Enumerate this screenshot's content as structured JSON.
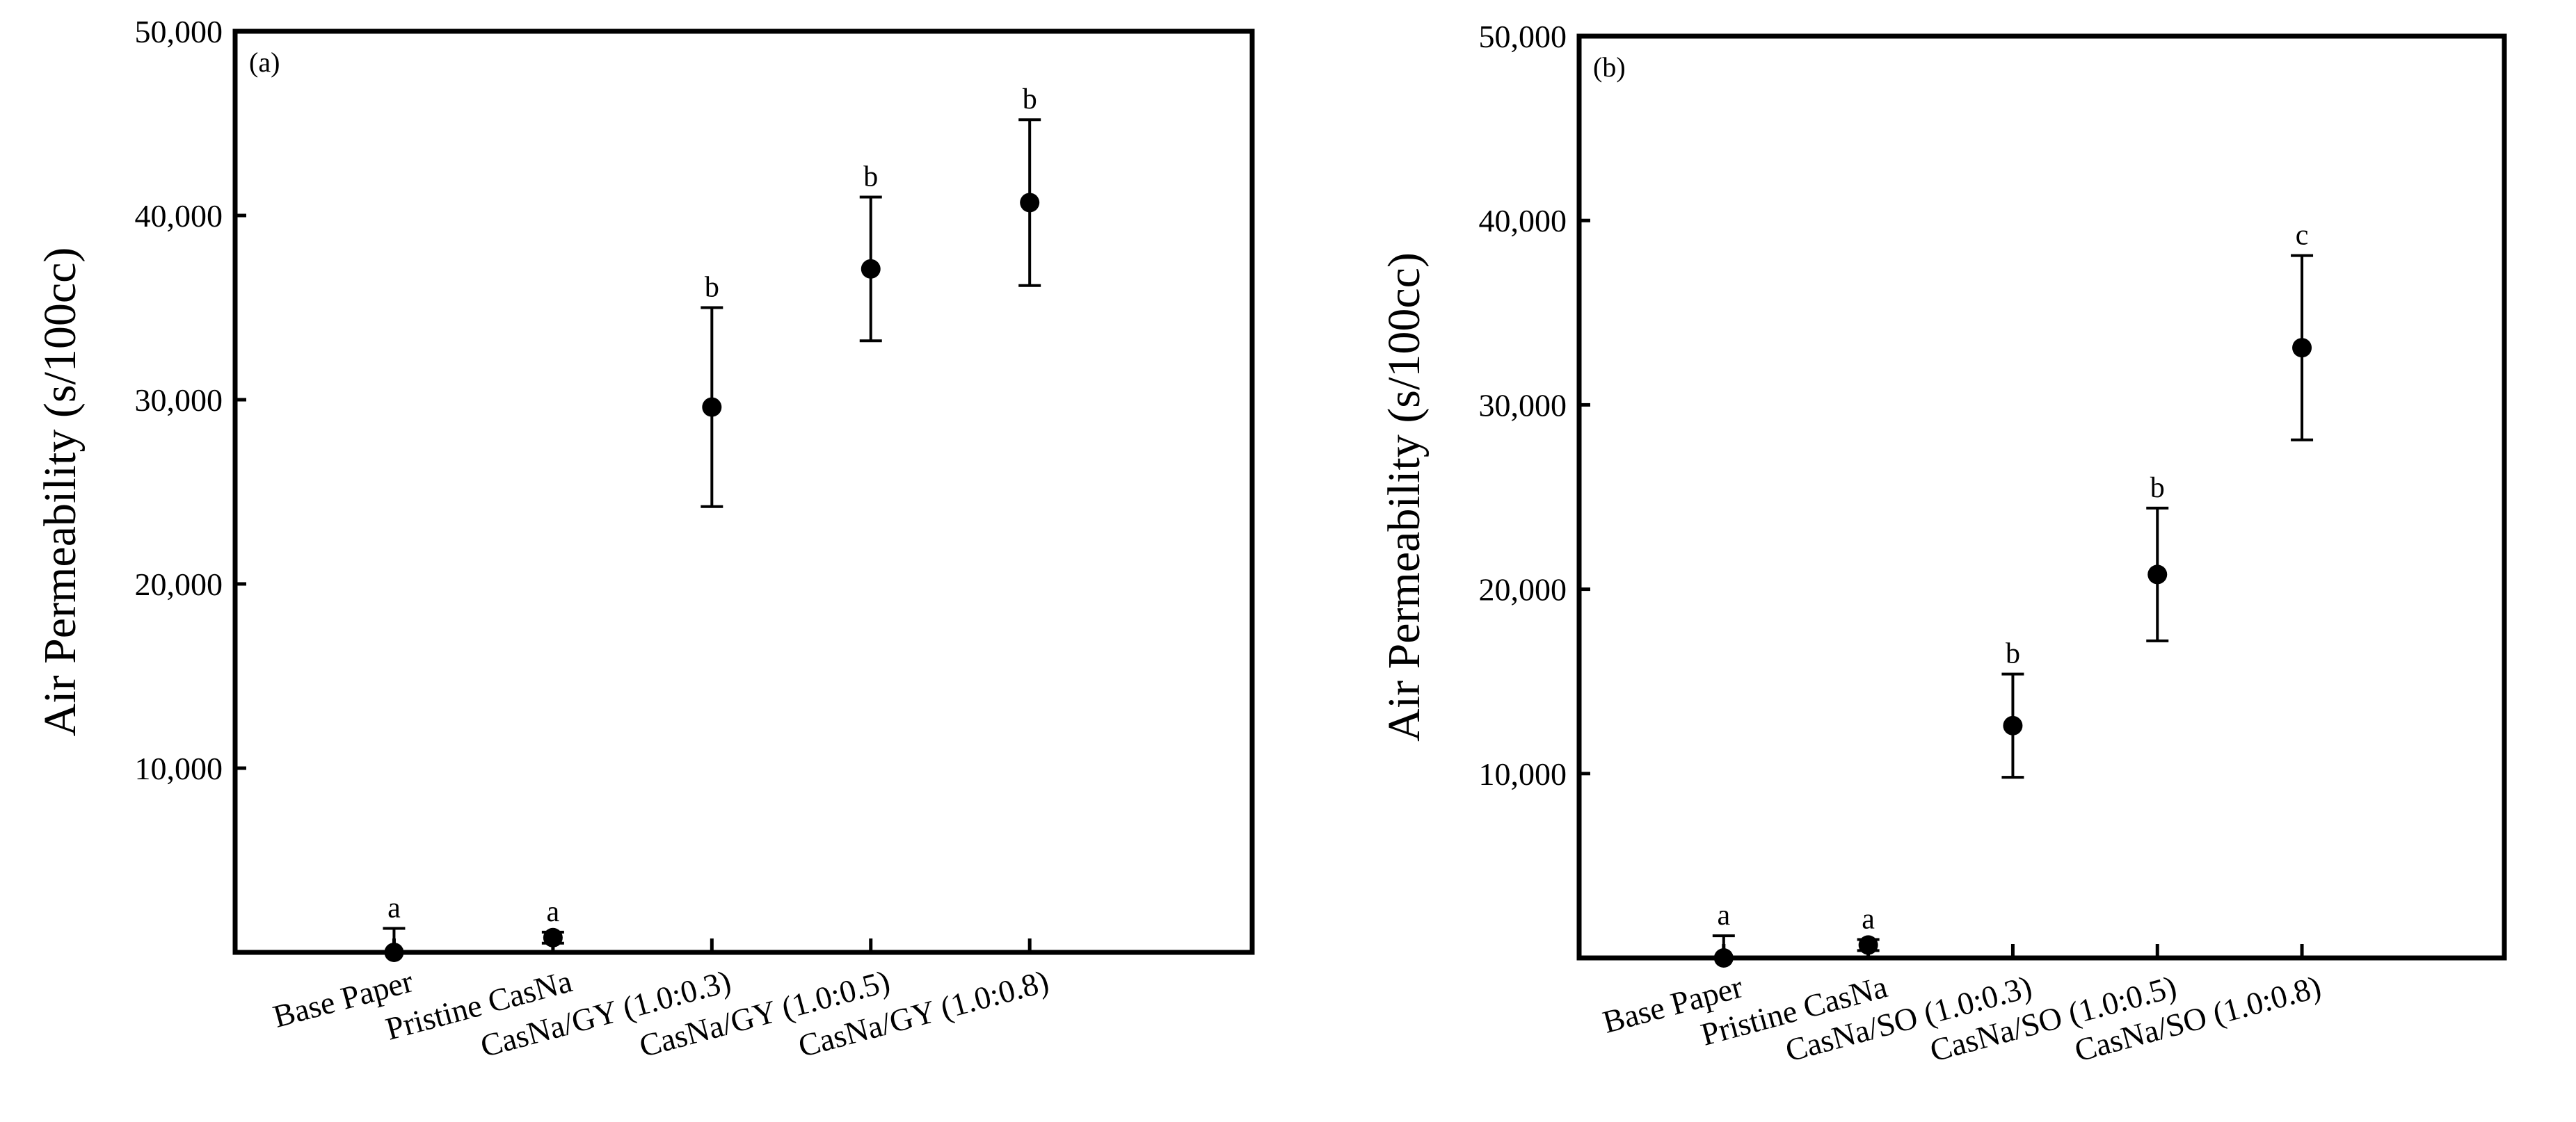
{
  "chart_data": [
    {
      "type": "scatter",
      "panel_label": "(a)",
      "ylabel": "Air Permeability (s/100cc)",
      "ylim": [
        0,
        50000
      ],
      "yticks": [
        10000,
        20000,
        30000,
        40000,
        50000
      ],
      "ytick_labels": [
        "10,000",
        "20,000",
        "30,000",
        "40,000",
        "50,000"
      ],
      "categories": [
        "Base Paper",
        "Pristine CasNa",
        "CasNa/GY (1.0:0.3)",
        "CasNa/GY (1.0:0.5)",
        "CasNa/GY (1.0:0.8)"
      ],
      "values": [
        0,
        800,
        29600,
        37100,
        40700
      ],
      "errors": [
        1300,
        300,
        5400,
        3900,
        4500
      ],
      "significance": [
        "a",
        "a",
        "b",
        "b",
        "b"
      ],
      "grid": false,
      "error_bars": true
    },
    {
      "type": "scatter",
      "panel_label": "(b)",
      "ylabel": "Air Permeability (s/100cc)",
      "ylim": [
        0,
        50000
      ],
      "yticks": [
        10000,
        20000,
        30000,
        40000,
        50000
      ],
      "ytick_labels": [
        "10,000",
        "20,000",
        "30,000",
        "40,000",
        "50,000"
      ],
      "categories": [
        "Base Paper",
        "Pristine CasNa",
        "CasNa/SO (1.0:0.3)",
        "CasNa/SO (1.0:0.5)",
        "CasNa/SO (1.0:0.8)"
      ],
      "values": [
        0,
        700,
        12600,
        20800,
        33100
      ],
      "errors": [
        1200,
        300,
        2800,
        3600,
        5000
      ],
      "significance": [
        "a",
        "a",
        "b",
        "b",
        "c"
      ],
      "grid": false,
      "error_bars": true
    }
  ]
}
